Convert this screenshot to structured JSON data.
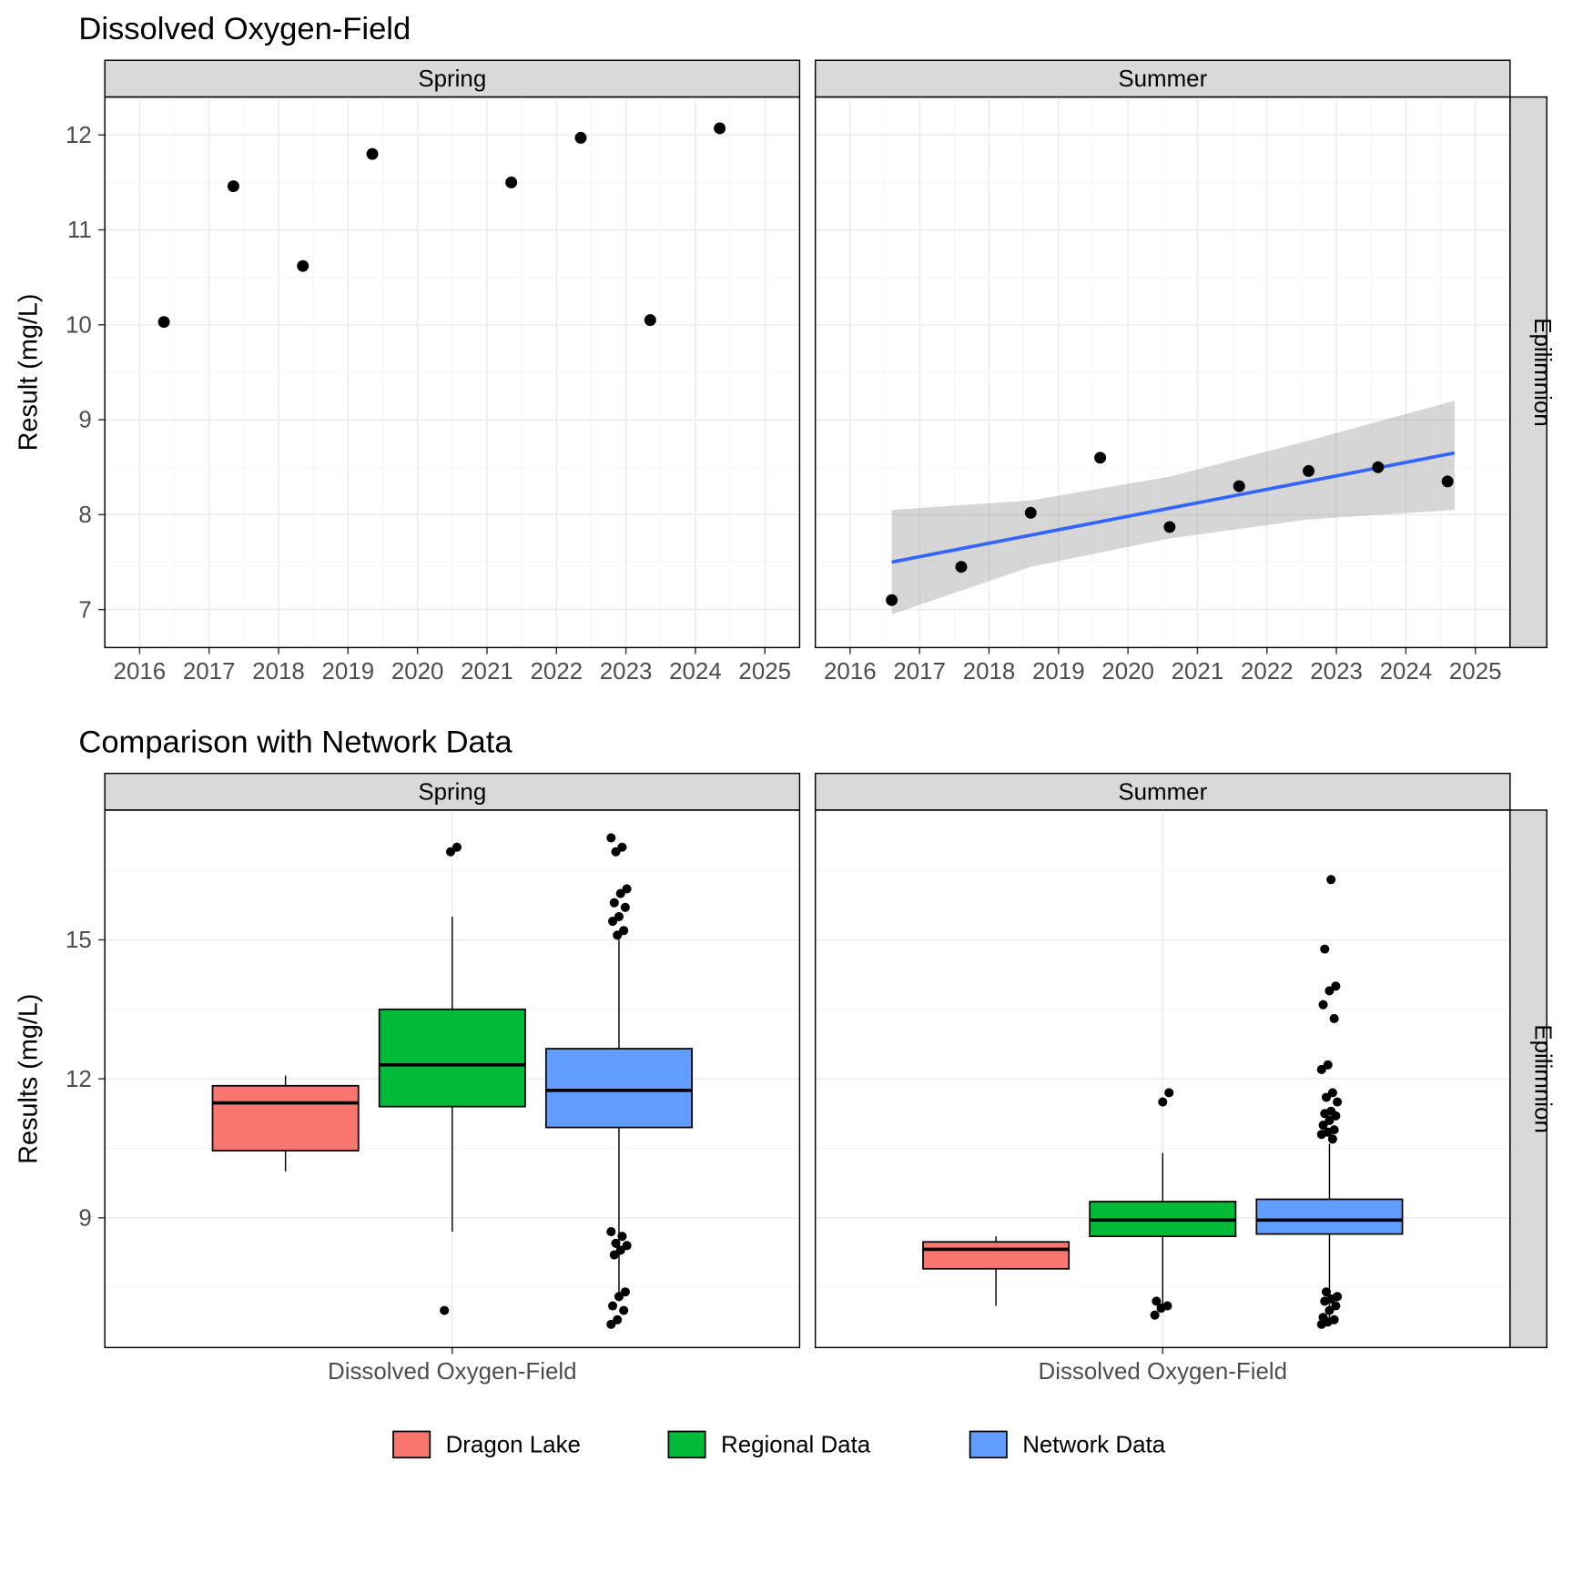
{
  "top_chart": {
    "title": "Dissolved Oxygen-Field",
    "ylabel": "Result (mg/L)",
    "ylim": [
      6.6,
      12.4
    ],
    "yticks": [
      7,
      8,
      9,
      10,
      11,
      12
    ],
    "xlim": [
      2015.5,
      2025.5
    ],
    "xticks": [
      2016,
      2017,
      2018,
      2019,
      2020,
      2021,
      2022,
      2023,
      2024,
      2025
    ],
    "strip_right": "Epilimnion",
    "facets": [
      "Spring",
      "Summer"
    ],
    "point_color": "#000000",
    "point_radius": 4.5,
    "line_color": "#3366ff",
    "ribbon_color": "#999999",
    "ribbon_opacity": 0.4,
    "background_color": "#ffffff",
    "grid_color": "#ebebeb",
    "spring_points": [
      {
        "x": 2016.35,
        "y": 10.03
      },
      {
        "x": 2017.35,
        "y": 11.46
      },
      {
        "x": 2018.35,
        "y": 10.62
      },
      {
        "x": 2019.35,
        "y": 11.8
      },
      {
        "x": 2021.35,
        "y": 11.5
      },
      {
        "x": 2022.35,
        "y": 11.97
      },
      {
        "x": 2023.35,
        "y": 10.05
      },
      {
        "x": 2024.35,
        "y": 12.07
      }
    ],
    "summer_points": [
      {
        "x": 2016.6,
        "y": 7.1
      },
      {
        "x": 2017.6,
        "y": 7.45
      },
      {
        "x": 2018.6,
        "y": 8.02
      },
      {
        "x": 2019.6,
        "y": 8.6
      },
      {
        "x": 2020.6,
        "y": 7.87
      },
      {
        "x": 2021.6,
        "y": 8.3
      },
      {
        "x": 2022.6,
        "y": 8.46
      },
      {
        "x": 2023.6,
        "y": 8.5
      },
      {
        "x": 2024.6,
        "y": 8.35
      }
    ],
    "trend_line": {
      "x1": 2016.6,
      "y1": 7.5,
      "x2": 2024.7,
      "y2": 8.65
    },
    "ribbon": [
      {
        "x": 2016.6,
        "lo": 6.95,
        "hi": 8.05
      },
      {
        "x": 2018.6,
        "lo": 7.45,
        "hi": 8.15
      },
      {
        "x": 2020.6,
        "lo": 7.75,
        "hi": 8.4
      },
      {
        "x": 2022.6,
        "lo": 7.95,
        "hi": 8.78
      },
      {
        "x": 2024.7,
        "lo": 8.05,
        "hi": 9.2
      }
    ]
  },
  "bottom_chart": {
    "title": "Comparison with Network Data",
    "ylabel": "Results (mg/L)",
    "ylim": [
      6.2,
      17.8
    ],
    "yticks": [
      9,
      12,
      15
    ],
    "xcategory": "Dissolved Oxygen-Field",
    "strip_right": "Epilimnion",
    "facets": [
      "Spring",
      "Summer"
    ],
    "box_colors": {
      "Dragon Lake": "#f8766d",
      "Regional Data": "#00ba38",
      "Network Data": "#619cff"
    },
    "box_stroke": "#000000",
    "median_stroke": "#000000",
    "median_width": 2.5,
    "whisker_width": 1,
    "outlier_color": "#000000",
    "outlier_radius": 3.5,
    "background_color": "#ffffff",
    "grid_color": "#ebebeb",
    "spring_boxes": [
      {
        "series": "Dragon Lake",
        "min": 10.0,
        "q1": 10.45,
        "med": 11.48,
        "q3": 11.85,
        "max": 12.07,
        "outliers": []
      },
      {
        "series": "Regional Data",
        "min": 8.7,
        "q1": 11.4,
        "med": 12.3,
        "q3": 13.5,
        "max": 15.5,
        "outliers": [
          7.0,
          16.9,
          17.0
        ]
      },
      {
        "series": "Network Data",
        "min": 7.2,
        "q1": 10.95,
        "med": 11.75,
        "q3": 12.65,
        "max": 15.0,
        "outliers": [
          6.7,
          6.8,
          7.0,
          7.1,
          7.3,
          7.4,
          8.2,
          8.3,
          8.4,
          8.45,
          8.6,
          8.7,
          15.1,
          15.2,
          15.4,
          15.5,
          15.7,
          15.8,
          16.0,
          16.1,
          16.9,
          17.0,
          17.2
        ]
      }
    ],
    "summer_boxes": [
      {
        "series": "Dragon Lake",
        "min": 7.1,
        "q1": 7.9,
        "med": 8.32,
        "q3": 8.48,
        "max": 8.6,
        "outliers": []
      },
      {
        "series": "Regional Data",
        "min": 7.0,
        "q1": 8.6,
        "med": 8.95,
        "q3": 9.35,
        "max": 10.4,
        "outliers": [
          6.9,
          7.05,
          7.1,
          7.2,
          11.5,
          11.7
        ]
      },
      {
        "series": "Network Data",
        "min": 6.8,
        "q1": 8.65,
        "med": 8.95,
        "q3": 9.4,
        "max": 10.6,
        "outliers": [
          6.7,
          6.75,
          6.8,
          6.85,
          7.0,
          7.1,
          7.2,
          7.25,
          7.3,
          7.4,
          10.7,
          10.8,
          10.85,
          10.9,
          11.0,
          11.1,
          11.2,
          11.25,
          11.3,
          11.5,
          11.6,
          11.7,
          12.2,
          12.3,
          13.3,
          13.6,
          13.9,
          14.0,
          14.8,
          16.3
        ]
      }
    ]
  },
  "legend": {
    "items": [
      {
        "label": "Dragon Lake",
        "fill": "#f8766d"
      },
      {
        "label": "Regional Data",
        "fill": "#00ba38"
      },
      {
        "label": "Network Data",
        "fill": "#619cff"
      }
    ]
  }
}
